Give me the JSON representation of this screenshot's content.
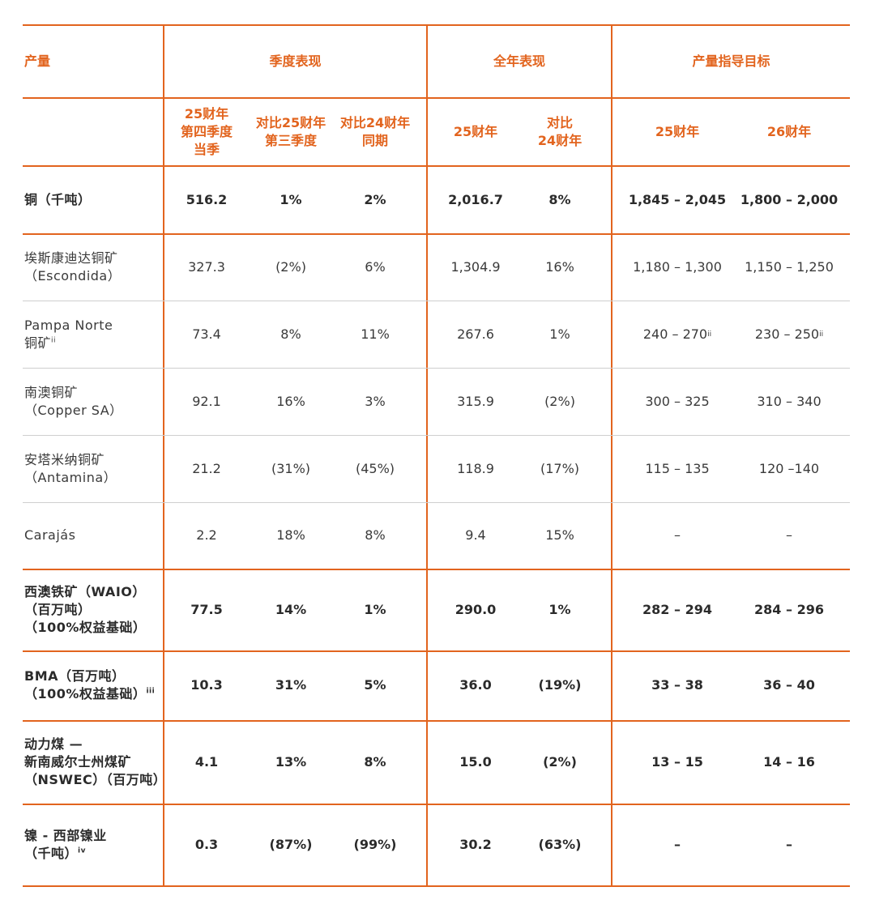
{
  "header": {
    "col_production": "产量",
    "group_quarter": "季度表现",
    "group_year": "全年表现",
    "group_guidance": "产量指导目标",
    "sub_q4": "25财年\n第四季度\n当季",
    "sub_vs_q3": "对比25财年\n第三季度",
    "sub_vs_fy24q": "对比24财年\n同期",
    "sub_fy25": "25财年",
    "sub_vs_fy24": "对比\n24财年",
    "sub_g25": "25财年",
    "sub_g26": "26财年"
  },
  "rows": [
    {
      "label": "铜（千吨）",
      "sup": "",
      "q4": "516.2",
      "vs_q3": "1%",
      "vs_ly": "2%",
      "fy25": "2,016.7",
      "vs_fy24": "8%",
      "g25": "1,845 – 2,045",
      "g25_sup": "",
      "g26": "1,800 – 2,000",
      "g26_sup": ""
    },
    {
      "label": "埃斯康迪达铜矿\n（Escondida）",
      "sup": "",
      "q4": "327.3",
      "vs_q3": "(2%)",
      "vs_ly": "6%",
      "fy25": "1,304.9",
      "vs_fy24": "16%",
      "g25": "1,180 – 1,300",
      "g25_sup": "",
      "g26": "1,150 – 1,250",
      "g26_sup": ""
    },
    {
      "label": "Pampa Norte\n铜矿",
      "sup": "ii",
      "q4": "73.4",
      "vs_q3": "8%",
      "vs_ly": "11%",
      "fy25": "267.6",
      "vs_fy24": "1%",
      "g25": "240 – 270",
      "g25_sup": "ii",
      "g26": "230 – 250",
      "g26_sup": "ii"
    },
    {
      "label": "南澳铜矿\n（Copper SA）",
      "sup": "",
      "q4": "92.1",
      "vs_q3": "16%",
      "vs_ly": "3%",
      "fy25": "315.9",
      "vs_fy24": "(2%)",
      "g25": "300  – 325",
      "g25_sup": "",
      "g26": "310 – 340",
      "g26_sup": ""
    },
    {
      "label": "安塔米纳铜矿\n（Antamina）",
      "sup": "",
      "q4": "21.2",
      "vs_q3": "(31%)",
      "vs_ly": "(45%)",
      "fy25": "118.9",
      "vs_fy24": "(17%)",
      "g25": "115 – 135",
      "g25_sup": "",
      "g26": "120 –140",
      "g26_sup": ""
    },
    {
      "label": "Carajás",
      "sup": "",
      "q4": "2.2",
      "vs_q3": "18%",
      "vs_ly": "8%",
      "fy25": "9.4",
      "vs_fy24": "15%",
      "g25": "–",
      "g25_sup": "",
      "g26": "–",
      "g26_sup": ""
    },
    {
      "label": "西澳铁矿（WAIO）\n（百万吨）\n（100%权益基础）",
      "sup": "",
      "q4": "77.5",
      "vs_q3": "14%",
      "vs_ly": "1%",
      "fy25": "290.0",
      "vs_fy24": "1%",
      "g25": "282 – 294",
      "g25_sup": "",
      "g26": "284 – 296",
      "g26_sup": ""
    },
    {
      "label": "BMA（百万吨）\n（100%权益基础）",
      "sup": "iii",
      "q4": "10.3",
      "vs_q3": "31%",
      "vs_ly": "5%",
      "fy25": "36.0",
      "vs_fy24": "(19%)",
      "g25": "33 – 38",
      "g25_sup": "",
      "g26": "36 – 40",
      "g26_sup": ""
    },
    {
      "label": "动力煤 —\n新南威尔士州煤矿\n（NSWEC）（百万吨）",
      "sup": "",
      "q4": "4.1",
      "vs_q3": "13%",
      "vs_ly": "8%",
      "fy25": "15.0",
      "vs_fy24": "(2%)",
      "g25": "13 – 15",
      "g25_sup": "",
      "g26": "14 – 16",
      "g26_sup": ""
    },
    {
      "label": "镍 - 西部镍业\n（千吨）",
      "sup": "iv",
      "q4": "0.3",
      "vs_q3": "(87%)",
      "vs_ly": "(99%)",
      "fy25": "30.2",
      "vs_fy24": "(63%)",
      "g25": "–",
      "g25_sup": "",
      "g26": "–",
      "g26_sup": ""
    }
  ]
}
